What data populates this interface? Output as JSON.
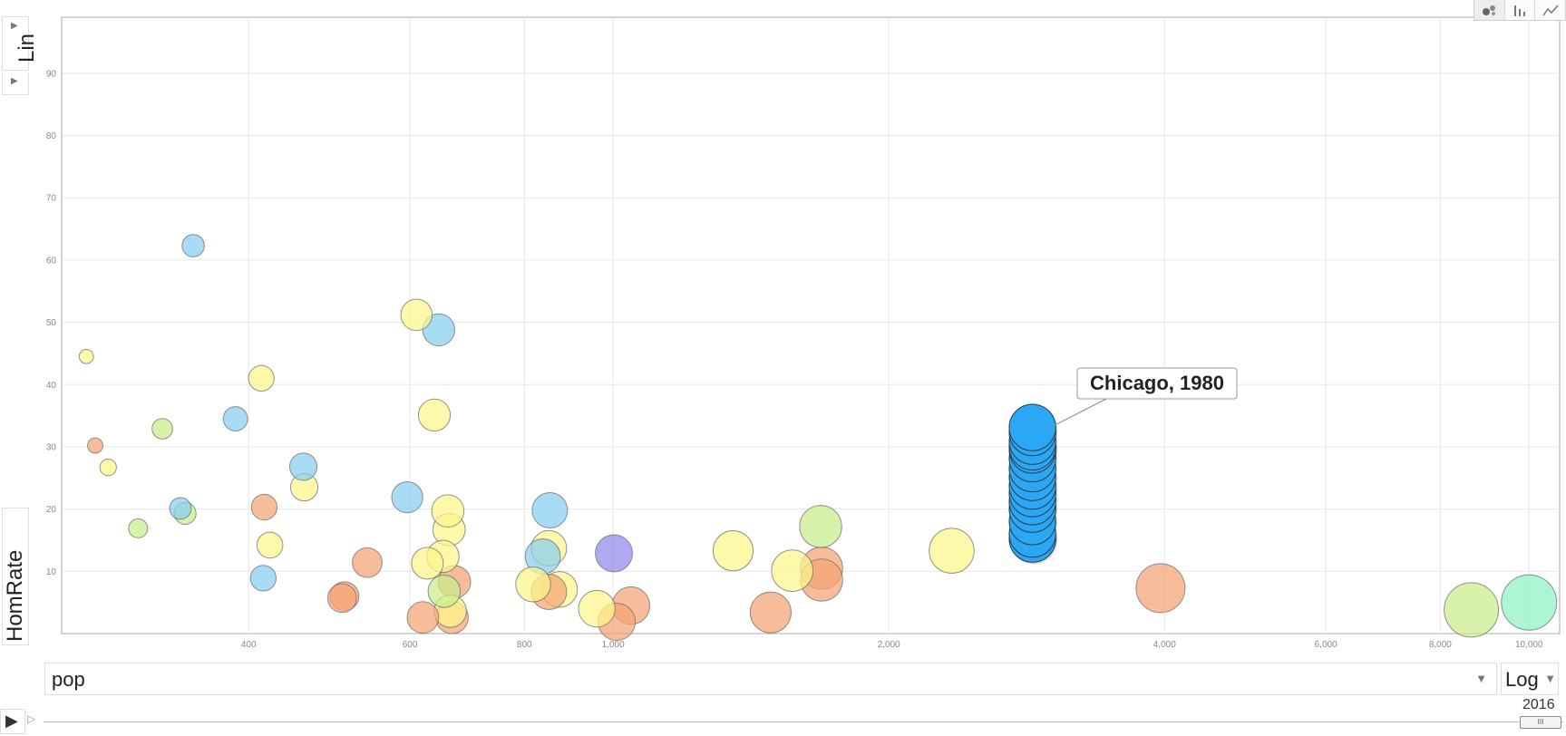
{
  "toolbar": {
    "tabs": [
      {
        "name": "bubble-chart",
        "icon": "bubble-icon"
      },
      {
        "name": "bar-chart",
        "icon": "bar-chart-icon"
      },
      {
        "name": "line-chart",
        "icon": "line-chart-icon"
      }
    ]
  },
  "y_axis_control": {
    "scale": "Lin",
    "variable": "HomRate"
  },
  "x_axis_control": {
    "variable": "pop",
    "scale": "Log"
  },
  "player": {
    "year": "2016",
    "thumb_glyph": "III"
  },
  "tooltip": {
    "label": "Chicago, 1980"
  },
  "chart_data": {
    "type": "scatter",
    "x_scale": "log",
    "xlim": [
      250,
      10800
    ],
    "ylim": [
      0,
      99
    ],
    "x_ticks": [
      {
        "value": 400,
        "label": "400"
      },
      {
        "value": 600,
        "label": "600"
      },
      {
        "value": 800,
        "label": "800"
      },
      {
        "value": 1000,
        "label": "1,000"
      },
      {
        "value": 2000,
        "label": "2,000"
      },
      {
        "value": 4000,
        "label": "4,000"
      },
      {
        "value": 6000,
        "label": "6,000"
      },
      {
        "value": 8000,
        "label": "8,000"
      },
      {
        "value": 10000,
        "label": "10,000"
      }
    ],
    "y_ticks": [
      10,
      20,
      30,
      40,
      50,
      60,
      70,
      80,
      90
    ],
    "grid": true,
    "colors": {
      "yellow": "#fdf58a",
      "orange": "#f4a373",
      "blue": "#86cdf0",
      "green": "#c9ec8a",
      "purple": "#8f88ec",
      "chicago": "#2aa8f5",
      "teal": "#8df2c2"
    },
    "points": [
      {
        "x": 266,
        "y": 44.5,
        "c": "yellow"
      },
      {
        "x": 272,
        "y": 30.2,
        "c": "orange"
      },
      {
        "x": 281,
        "y": 26.7,
        "c": "yellow"
      },
      {
        "x": 303,
        "y": 16.9,
        "c": "green"
      },
      {
        "x": 322,
        "y": 32.9,
        "c": "green"
      },
      {
        "x": 337,
        "y": 20.1,
        "c": "blue"
      },
      {
        "x": 341,
        "y": 19.3,
        "c": "green"
      },
      {
        "x": 348,
        "y": 62.3,
        "c": "blue"
      },
      {
        "x": 387,
        "y": 34.5,
        "c": "blue"
      },
      {
        "x": 413,
        "y": 41.0,
        "c": "yellow"
      },
      {
        "x": 415,
        "y": 8.9,
        "c": "blue"
      },
      {
        "x": 416,
        "y": 20.3,
        "c": "orange"
      },
      {
        "x": 422,
        "y": 14.2,
        "c": "yellow"
      },
      {
        "x": 459,
        "y": 26.8,
        "c": "blue"
      },
      {
        "x": 460,
        "y": 23.5,
        "c": "yellow"
      },
      {
        "x": 506,
        "y": 5.7,
        "c": "orange"
      },
      {
        "x": 509,
        "y": 6.0,
        "c": "orange"
      },
      {
        "x": 539,
        "y": 11.4,
        "c": "orange"
      },
      {
        "x": 596,
        "y": 21.9,
        "c": "blue"
      },
      {
        "x": 610,
        "y": 51.2,
        "c": "yellow"
      },
      {
        "x": 620,
        "y": 2.6,
        "c": "orange"
      },
      {
        "x": 627,
        "y": 11.3,
        "c": "yellow"
      },
      {
        "x": 638,
        "y": 35.1,
        "c": "yellow"
      },
      {
        "x": 645,
        "y": 48.8,
        "c": "blue"
      },
      {
        "x": 652,
        "y": 12.4,
        "c": "yellow"
      },
      {
        "x": 654,
        "y": 6.8,
        "c": "green"
      },
      {
        "x": 660,
        "y": 19.7,
        "c": "yellow"
      },
      {
        "x": 662,
        "y": 16.7,
        "c": "yellow"
      },
      {
        "x": 664,
        "y": 3.6,
        "c": "yellow"
      },
      {
        "x": 667,
        "y": 2.6,
        "c": "orange"
      },
      {
        "x": 671,
        "y": 8.3,
        "c": "orange"
      },
      {
        "x": 818,
        "y": 7.9,
        "c": "yellow"
      },
      {
        "x": 838,
        "y": 12.4,
        "c": "blue"
      },
      {
        "x": 851,
        "y": 13.7,
        "c": "yellow"
      },
      {
        "x": 851,
        "y": 6.7,
        "c": "orange"
      },
      {
        "x": 853,
        "y": 19.8,
        "c": "blue"
      },
      {
        "x": 874,
        "y": 7.1,
        "c": "yellow"
      },
      {
        "x": 960,
        "y": 4.0,
        "c": "yellow"
      },
      {
        "x": 1002,
        "y": 12.9,
        "c": "purple"
      },
      {
        "x": 1009,
        "y": 1.9,
        "c": "orange"
      },
      {
        "x": 1046,
        "y": 4.5,
        "c": "orange"
      },
      {
        "x": 1352,
        "y": 13.3,
        "c": "yellow"
      },
      {
        "x": 1486,
        "y": 3.4,
        "c": "orange"
      },
      {
        "x": 1569,
        "y": 10.1,
        "c": "yellow"
      },
      {
        "x": 1685,
        "y": 17.2,
        "c": "green"
      },
      {
        "x": 1689,
        "y": 10.5,
        "c": "orange"
      },
      {
        "x": 1689,
        "y": 8.6,
        "c": "orange"
      },
      {
        "x": 2342,
        "y": 13.3,
        "c": "yellow"
      },
      {
        "x": 3960,
        "y": 7.3,
        "c": "orange"
      },
      {
        "x": 8650,
        "y": 3.8,
        "c": "green"
      },
      {
        "x": 10000,
        "y": 5.0,
        "c": "teal"
      }
    ],
    "chicago_series": {
      "x": 2870,
      "y": [
        15.2,
        16.0,
        18.0,
        20.0,
        21.2,
        22.5,
        23.7,
        25.1,
        26.5,
        28.1,
        29.5,
        30.0,
        30.9,
        32.3,
        33.1
      ],
      "selected_y": 33.1
    }
  }
}
